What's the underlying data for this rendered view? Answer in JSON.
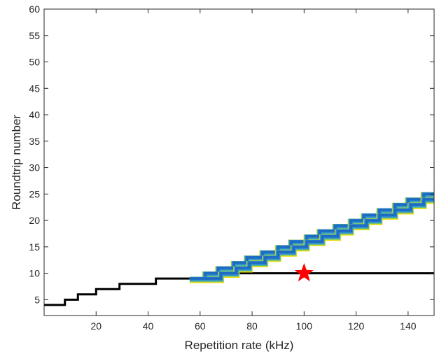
{
  "chart_data": {
    "type": "line",
    "title": "",
    "xlabel": "Repetition rate (kHz)",
    "ylabel": "Roundtrip number",
    "xlim": [
      0,
      150
    ],
    "ylim": [
      2,
      60
    ],
    "x_ticks": [
      20,
      40,
      60,
      80,
      100,
      120,
      140
    ],
    "y_ticks": [
      5,
      10,
      15,
      20,
      25,
      30,
      35,
      40,
      45,
      50,
      55,
      60
    ],
    "grid": false,
    "legend": "none",
    "series": [
      {
        "color": "#000000",
        "style": "staircase",
        "points": [
          [
            0,
            4
          ],
          [
            8,
            4
          ],
          [
            8,
            5
          ],
          [
            13,
            5
          ],
          [
            13,
            6
          ],
          [
            20,
            6
          ],
          [
            20,
            7
          ],
          [
            29,
            7
          ],
          [
            29,
            8
          ],
          [
            43,
            8
          ],
          [
            43,
            9
          ],
          [
            68,
            9
          ],
          [
            68,
            10
          ],
          [
            150,
            10
          ]
        ]
      },
      {
        "color_band": [
          "#f2dd00",
          "#1e6bc4"
        ],
        "style": "staircase-band",
        "points": [
          [
            56,
            9
          ],
          [
            62,
            9
          ],
          [
            62,
            10
          ],
          [
            67,
            10
          ],
          [
            67,
            11
          ],
          [
            73,
            11
          ],
          [
            73,
            12
          ],
          [
            78,
            12
          ],
          [
            78,
            13
          ],
          [
            84,
            13
          ],
          [
            84,
            14
          ],
          [
            90,
            14
          ],
          [
            90,
            15
          ],
          [
            95,
            15
          ],
          [
            95,
            16
          ],
          [
            101,
            16
          ],
          [
            101,
            17
          ],
          [
            106,
            17
          ],
          [
            106,
            18
          ],
          [
            112,
            18
          ],
          [
            112,
            19
          ],
          [
            118,
            19
          ],
          [
            118,
            20
          ],
          [
            123,
            20
          ],
          [
            123,
            21
          ],
          [
            129,
            21
          ],
          [
            129,
            22
          ],
          [
            135,
            22
          ],
          [
            135,
            23
          ],
          [
            140,
            23
          ],
          [
            140,
            24
          ],
          [
            146,
            24
          ],
          [
            146,
            25
          ],
          [
            150,
            25
          ]
        ]
      },
      {
        "color_band": [
          "#f2dd00",
          "#1e6bc4"
        ],
        "style": "staircase-band",
        "points": [
          [
            56,
            9
          ],
          [
            68,
            9
          ],
          [
            68,
            10
          ],
          [
            74,
            10
          ],
          [
            74,
            11
          ],
          [
            79,
            11
          ],
          [
            79,
            12
          ],
          [
            85,
            12
          ],
          [
            85,
            13
          ],
          [
            90,
            13
          ],
          [
            90,
            14
          ],
          [
            96,
            14
          ],
          [
            96,
            15
          ],
          [
            101,
            15
          ],
          [
            101,
            16
          ],
          [
            107,
            16
          ],
          [
            107,
            17
          ],
          [
            113,
            17
          ],
          [
            113,
            18
          ],
          [
            118,
            18
          ],
          [
            118,
            19
          ],
          [
            124,
            19
          ],
          [
            124,
            20
          ],
          [
            129,
            20
          ],
          [
            129,
            21
          ],
          [
            135,
            21
          ],
          [
            135,
            22
          ],
          [
            141,
            22
          ],
          [
            141,
            23
          ],
          [
            146,
            23
          ],
          [
            146,
            24
          ],
          [
            150,
            24
          ]
        ]
      }
    ],
    "marker": {
      "shape": "star",
      "color": "#ff0000",
      "x": 100,
      "y": 10
    }
  }
}
